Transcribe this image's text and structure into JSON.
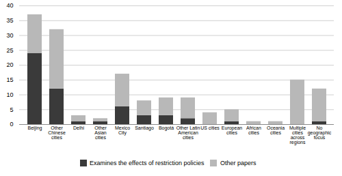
{
  "chart_data": {
    "type": "bar",
    "stacked": true,
    "categories": [
      "Beijing",
      "Other\nChinese\ncities",
      "Delhi",
      "Other\nAsian\ncities",
      "Mexico\nCity",
      "Santiago",
      "Bogotá",
      "Other Latin\nAmerican\ncities",
      "US cities",
      "European\ncities",
      "African\ncities",
      "Oceania\ncities",
      "Multiple\ncities\nacross\nregions",
      "No\ngeographic\nfocus"
    ],
    "series": [
      {
        "name": "Examines the effects of restriction policies",
        "color": "#3a3a3a",
        "values": [
          24,
          12,
          1,
          1,
          6,
          3,
          3,
          2,
          0,
          1,
          0,
          0,
          0,
          1
        ]
      },
      {
        "name": "Other papers",
        "color": "#b8b8b8",
        "values": [
          13,
          20,
          2,
          1,
          11,
          5,
          6,
          7,
          4,
          4,
          1,
          1,
          15,
          11
        ]
      }
    ],
    "ylim": [
      0,
      40
    ],
    "yticks": [
      0,
      5,
      10,
      15,
      20,
      25,
      30,
      35,
      40
    ],
    "grid": true,
    "legend": "bottom"
  }
}
